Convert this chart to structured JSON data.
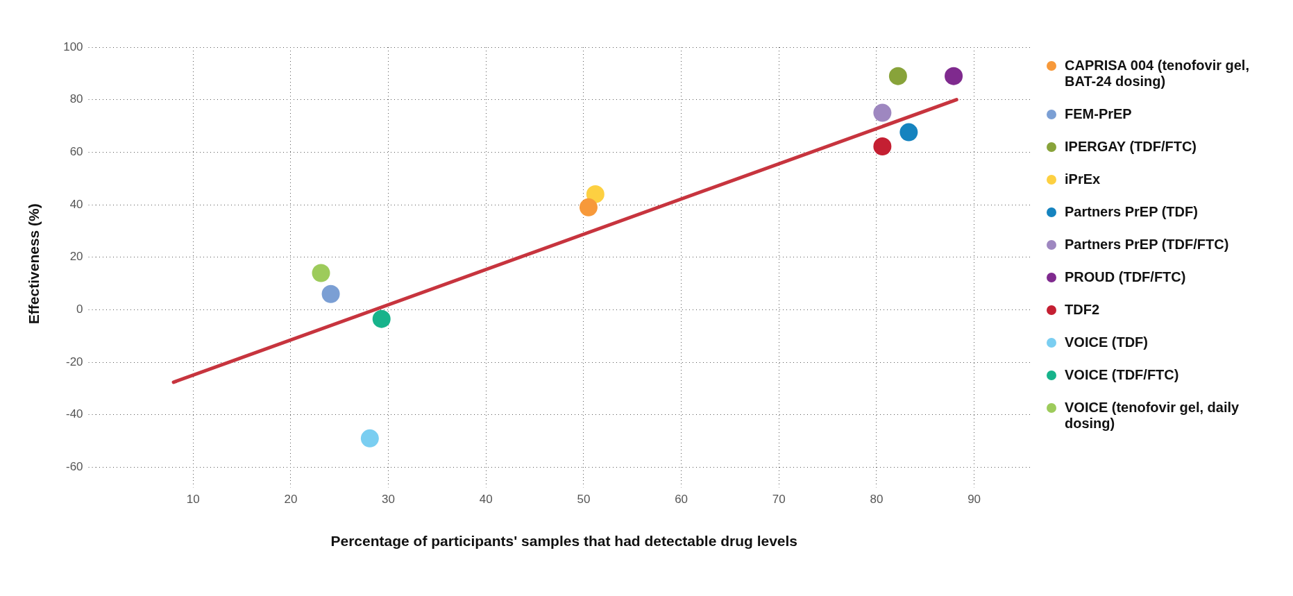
{
  "chart_data": {
    "type": "scatter",
    "xlabel": "Percentage of participants' samples that had detectable drug levels",
    "ylabel": "Effectiveness (%)",
    "xlim": [
      0,
      96
    ],
    "xticks": [
      10,
      20,
      30,
      40,
      50,
      60,
      70,
      80,
      90
    ],
    "ylim": [
      -65,
      100
    ],
    "yticks": [
      -60,
      -40,
      -20,
      0,
      20,
      40,
      60,
      80,
      100
    ],
    "grid": true,
    "legend": "right",
    "marker": "circle",
    "series": [
      {
        "name": "CAPRISA 004 (tenofovir gel, BAT-24 dosing)",
        "color": "#f7993a",
        "x": [
          50.5
        ],
        "values": [
          39
        ]
      },
      {
        "name": "FEM-PrEP",
        "color": "#7b9fd4",
        "x": [
          24.1
        ],
        "values": [
          6
        ]
      },
      {
        "name": "IPERGAY (TDF/FTC)",
        "color": "#88a33a",
        "x": [
          82.2
        ],
        "values": [
          89
        ]
      },
      {
        "name": "iPrEx",
        "color": "#fdd041",
        "x": [
          51.2
        ],
        "values": [
          44
        ]
      },
      {
        "name": "Partners PrEP (TDF)",
        "color": "#1583bf",
        "x": [
          83.3
        ],
        "values": [
          67.6
        ]
      },
      {
        "name": "Partners PrEP (TDF/FTC)",
        "color": "#9e87c0",
        "x": [
          80.6
        ],
        "values": [
          75
        ]
      },
      {
        "name": "PROUD (TDF/FTC)",
        "color": "#7f2a8e",
        "x": [
          87.9
        ],
        "values": [
          89
        ]
      },
      {
        "name": "TDF2",
        "color": "#c41f32",
        "x": [
          80.6
        ],
        "values": [
          62.2
        ]
      },
      {
        "name": "VOICE (TDF)",
        "color": "#7acef1",
        "x": [
          28.1
        ],
        "values": [
          -49
        ]
      },
      {
        "name": "VOICE (TDF/FTC)",
        "color": "#17b38b",
        "x": [
          29.3
        ],
        "values": [
          -3.5
        ]
      },
      {
        "name": "VOICE (tenofovir gel, daily dosing)",
        "color": "#9dcb5b",
        "x": [
          23.1
        ],
        "values": [
          14
        ]
      },
      {
        "type": "line",
        "color": "#c7343e",
        "marker": "none",
        "x": [
          8,
          88.2
        ],
        "values": [
          -27.6,
          80
        ]
      }
    ]
  }
}
